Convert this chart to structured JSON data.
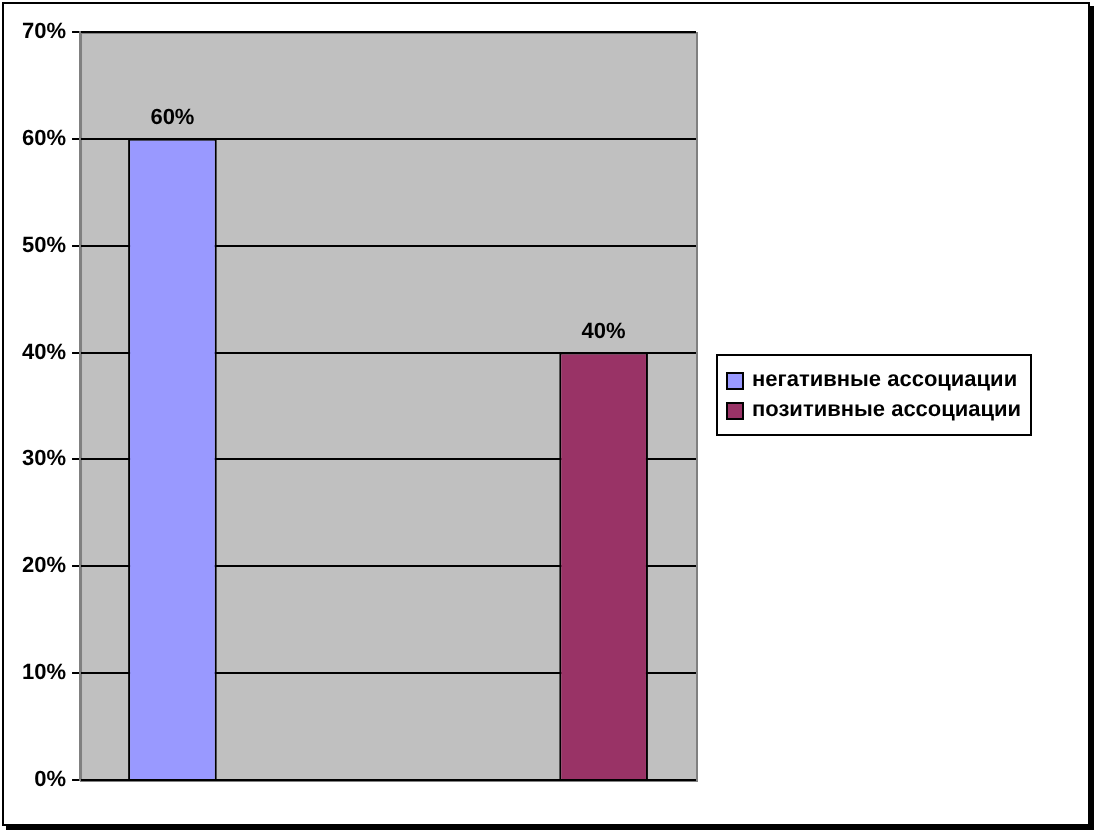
{
  "chart_data": {
    "type": "bar",
    "categories": [
      null,
      null
    ],
    "series": [
      {
        "name": "негативные ассоциации",
        "color": "#9999ff",
        "values": [
          60,
          null
        ],
        "value_labels": [
          "60%",
          null
        ]
      },
      {
        "name": "позитивные ассоциации",
        "color": "#993366",
        "values": [
          null,
          40
        ],
        "value_labels": [
          null,
          "40%"
        ]
      }
    ],
    "ylim": [
      0,
      70
    ],
    "yticks": [
      {
        "value": 0,
        "label": "0%"
      },
      {
        "value": 10,
        "label": "10%"
      },
      {
        "value": 20,
        "label": "20%"
      },
      {
        "value": 30,
        "label": "30%"
      },
      {
        "value": 40,
        "label": "40%"
      },
      {
        "value": 50,
        "label": "50%"
      },
      {
        "value": 60,
        "label": "60%"
      },
      {
        "value": 70,
        "label": "70%"
      }
    ],
    "grid": "y",
    "legend": "right"
  }
}
